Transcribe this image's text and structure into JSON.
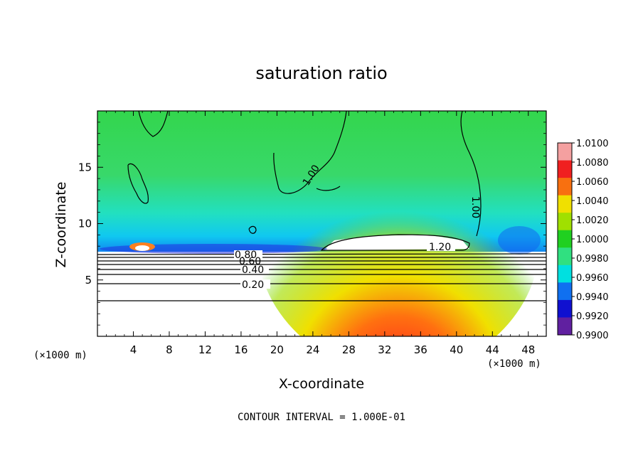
{
  "chart_data": {
    "type": "heatmap",
    "title": "saturation ratio",
    "xlabel": "X-coordinate",
    "ylabel": "Z-coordinate",
    "x_unit_left": "(×1000 m)",
    "x_unit_right": "(×1000 m)",
    "xlim": [
      0,
      50
    ],
    "ylim": [
      0,
      20
    ],
    "x_ticks": [
      4,
      8,
      12,
      16,
      20,
      24,
      28,
      32,
      36,
      40,
      44,
      48
    ],
    "y_ticks": [
      5,
      10,
      15
    ],
    "colorbar": {
      "ticks": [
        "1.0100",
        "1.0080",
        "1.0060",
        "1.0040",
        "1.0020",
        "1.0000",
        "0.9980",
        "0.9960",
        "0.9940",
        "0.9920",
        "0.9900"
      ],
      "colors": [
        "#f4a0a0",
        "#f02020",
        "#f87010",
        "#f0e000",
        "#a0e000",
        "#20d020",
        "#30e080",
        "#00e0e0",
        "#1070f0",
        "#1010d0",
        "#6020a0"
      ]
    },
    "contours": [
      {
        "label": "0.20",
        "z": 4.8
      },
      {
        "label": "0.40",
        "z": 6.0
      },
      {
        "label": "0.60",
        "z": 6.6
      },
      {
        "label": "0.80",
        "z": 7.2
      },
      {
        "label": "1.00",
        "z": 15.0
      },
      {
        "label": "1.00",
        "z": 12.0
      },
      {
        "label": "1.20",
        "z": 7.9
      }
    ],
    "contour_interval_text": "CONTOUR INTERVAL = 1.000E-01"
  }
}
